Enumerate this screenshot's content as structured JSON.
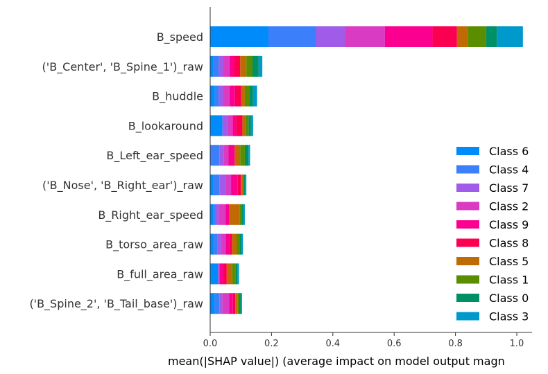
{
  "chart_data": {
    "type": "bar",
    "orientation": "horizontal",
    "stacked": true,
    "xlabel": "mean(|SHAP value|) (average impact on model output magn",
    "xlim": [
      0,
      1.05
    ],
    "xticks": [
      "0.0",
      "0.2",
      "0.4",
      "0.6",
      "0.8",
      "1.0"
    ],
    "grid": false,
    "legend_position": "bottom-right",
    "categories": [
      "B_speed",
      "('B_Center', 'B_Spine_1')_raw",
      "B_huddle",
      "B_lookaround",
      "B_Left_ear_speed",
      "('B_Nose', 'B_Right_ear')_raw",
      "B_Right_ear_speed",
      "B_torso_area_raw",
      "B_full_area_raw",
      "('B_Spine_2', 'B_Tail_base')_raw"
    ],
    "series": [
      {
        "name": "Class 6",
        "color": "#008bfb",
        "values": [
          0.19,
          0.01,
          0.015,
          0.04,
          0.0,
          0.01,
          0.01,
          0.012,
          0.025,
          0.015
        ]
      },
      {
        "name": "Class 4",
        "color": "#3c7ffb",
        "values": [
          0.155,
          0.018,
          0.013,
          0.0,
          0.03,
          0.02,
          0.008,
          0.012,
          0.0,
          0.015
        ]
      },
      {
        "name": "Class 7",
        "color": "#a05ce8",
        "values": [
          0.095,
          0.015,
          0.015,
          0.015,
          0.015,
          0.02,
          0.01,
          0.012,
          0.005,
          0.01
        ]
      },
      {
        "name": "Class 2",
        "color": "#d93bc3",
        "values": [
          0.13,
          0.02,
          0.02,
          0.018,
          0.015,
          0.018,
          0.022,
          0.015,
          0.0,
          0.022
        ]
      },
      {
        "name": "Class 9",
        "color": "#fb0090",
        "values": [
          0.155,
          0.015,
          0.018,
          0.012,
          0.02,
          0.022,
          0.012,
          0.012,
          0.012,
          0.012
        ]
      },
      {
        "name": "Class 8",
        "color": "#fb0051",
        "values": [
          0.08,
          0.02,
          0.02,
          0.02,
          0.0,
          0.01,
          0.0,
          0.008,
          0.012,
          0.008
        ]
      },
      {
        "name": "Class 5",
        "color": "#c06a05",
        "values": [
          0.035,
          0.02,
          0.012,
          0.01,
          0.018,
          0.008,
          0.035,
          0.015,
          0.018,
          0.008
        ]
      },
      {
        "name": "Class 1",
        "color": "#5a8d00",
        "values": [
          0.06,
          0.02,
          0.015,
          0.01,
          0.015,
          0.0,
          0.007,
          0.01,
          0.01,
          0.005
        ]
      },
      {
        "name": "Class 0",
        "color": "#009065",
        "values": [
          0.035,
          0.02,
          0.012,
          0.008,
          0.012,
          0.006,
          0.005,
          0.006,
          0.007,
          0.005
        ]
      },
      {
        "name": "Class 3",
        "color": "#0099cc",
        "values": [
          0.085,
          0.012,
          0.013,
          0.007,
          0.005,
          0.004,
          0.004,
          0.005,
          0.005,
          0.004
        ]
      }
    ],
    "legend_order": [
      "Class 6",
      "Class 4",
      "Class 7",
      "Class 2",
      "Class 9",
      "Class 8",
      "Class 5",
      "Class 1",
      "Class 0",
      "Class 3"
    ]
  }
}
